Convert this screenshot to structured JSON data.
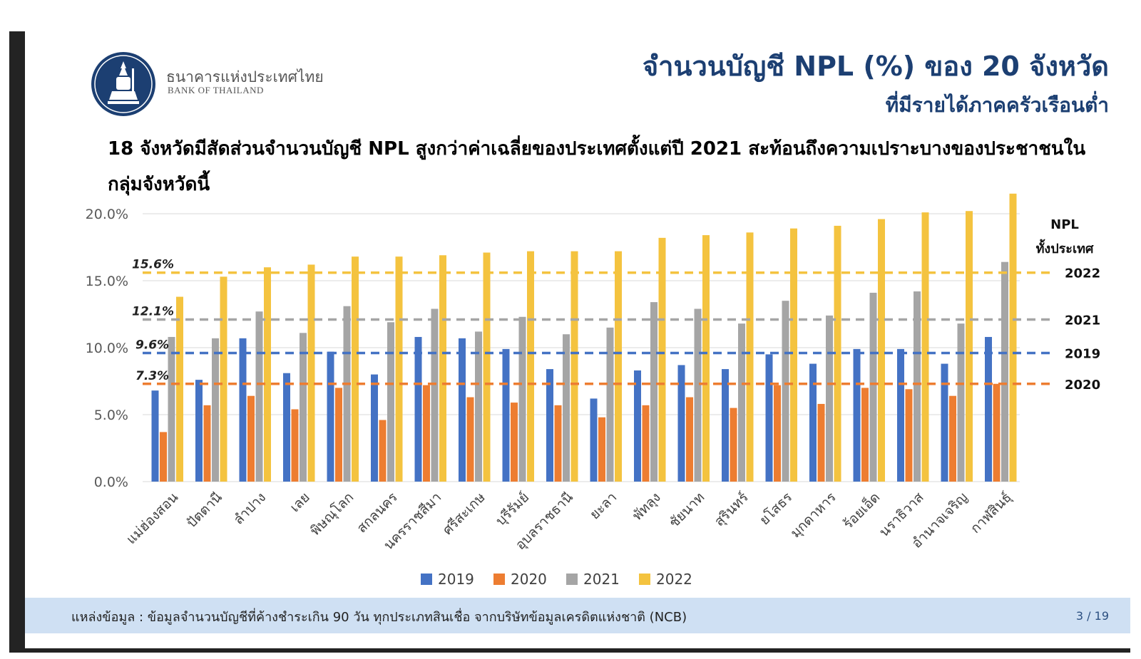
{
  "header": {
    "bank_name_th": "ธนาคารแห่งประเทศไทย",
    "bank_name_en": "BANK OF THAILAND",
    "title": "จำนวนบัญชี NPL (%) ของ 20 จังหวัด",
    "subtitle": "ที่มีรายได้ภาคครัวเรือนต่ำ",
    "headline": "18 จังหวัดมีสัดส่วนจำนวนบัญชี NPL สูงกว่าค่าเฉลี่ยของประเทศตั้งแต่ปี 2021 สะท้อนถึงความเปราะบางของประชาชนในกลุ่มจังหวัดนี้"
  },
  "colors": {
    "title": "#1c3f72",
    "logo_fill": "#1c3f72",
    "footer_bg": "#cfe0f3"
  },
  "chart_data": {
    "type": "bar",
    "categories": [
      "แม่ฮ่องสอน",
      "ปัตตานี",
      "ลำปาง",
      "เลย",
      "พิษณุโลก",
      "สกลนคร",
      "นครราชสีมา",
      "ศรีสะเกษ",
      "บุรีรัมย์",
      "อุบลราชธานี",
      "ยะลา",
      "พัทลุง",
      "ชัยนาท",
      "สุรินทร์",
      "ยโสธร",
      "มุกดาหาร",
      "ร้อยเอ็ด",
      "นราธิวาส",
      "อำนาจเจริญ",
      "กาฬสินธุ์"
    ],
    "series": [
      {
        "name": "2019",
        "color": "#4472c4",
        "values": [
          6.8,
          7.6,
          10.7,
          8.1,
          9.7,
          8.0,
          10.8,
          10.7,
          9.9,
          8.4,
          6.2,
          8.3,
          8.7,
          8.4,
          9.5,
          8.8,
          9.9,
          9.9,
          8.8,
          10.8
        ]
      },
      {
        "name": "2020",
        "color": "#ed7d31",
        "values": [
          3.7,
          5.7,
          6.4,
          5.4,
          7.0,
          4.6,
          7.2,
          6.3,
          5.9,
          5.7,
          4.8,
          5.7,
          6.3,
          5.5,
          7.2,
          5.8,
          7.0,
          6.9,
          6.4,
          7.3
        ]
      },
      {
        "name": "2021",
        "color": "#a5a5a5",
        "values": [
          10.8,
          10.7,
          12.7,
          11.1,
          13.1,
          11.9,
          12.9,
          11.2,
          12.3,
          11.0,
          11.5,
          13.4,
          12.9,
          11.8,
          13.5,
          12.4,
          14.1,
          14.2,
          11.8,
          16.4
        ]
      },
      {
        "name": "2022",
        "color": "#f4c33f",
        "values": [
          13.8,
          15.3,
          16.0,
          16.2,
          16.8,
          16.8,
          16.9,
          17.1,
          17.2,
          17.2,
          17.2,
          18.2,
          18.4,
          18.6,
          18.9,
          19.1,
          19.6,
          20.1,
          20.2,
          21.5
        ]
      }
    ],
    "ylim": [
      0,
      21.5
    ],
    "yticks": [
      0,
      5,
      10,
      15,
      20
    ],
    "ytick_labels": [
      "0.0%",
      "5.0%",
      "10.0%",
      "15.0%",
      "20.0%"
    ],
    "grid": true,
    "legend_position": "bottom",
    "reference_lines": [
      {
        "label": "2022",
        "value": 15.6,
        "value_label": "15.6%",
        "color": "#f4c33f"
      },
      {
        "label": "2021",
        "value": 12.1,
        "value_label": "12.1%",
        "color": "#a5a5a5"
      },
      {
        "label": "2019",
        "value": 9.6,
        "value_label": "9.6%",
        "color": "#4472c4"
      },
      {
        "label": "2020",
        "value": 7.3,
        "value_label": "7.3%",
        "color": "#ed7d31"
      }
    ],
    "reference_title": [
      "NPL",
      "ทั้งประเทศ"
    ]
  },
  "footer": {
    "source": "แหล่งข้อมูล : ข้อมูลจำนวนบัญชีที่ค้างชำระเกิน 90 วัน ทุกประเภทสินเชื่อ จากบริษัทข้อมูลเครดิตแห่งชาติ (NCB)",
    "page": "3 / 19"
  }
}
